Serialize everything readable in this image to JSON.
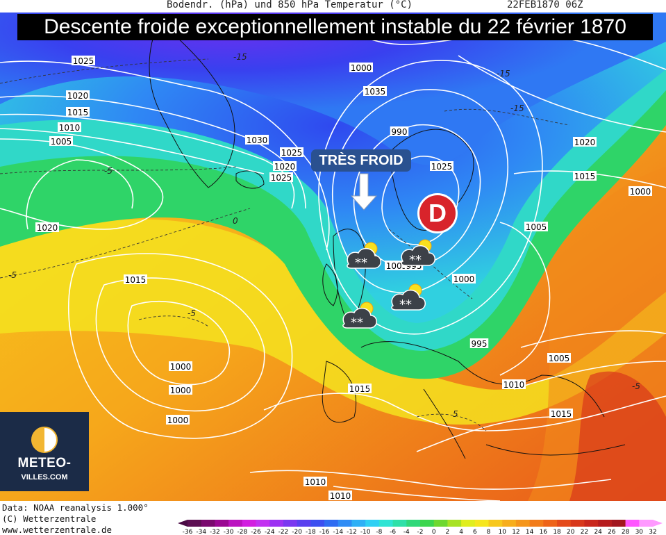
{
  "header": {
    "product": "Bodendr. (hPa) und 850 hPa Temperatur (°C)",
    "timestamp": "22FEB1870 06Z"
  },
  "title": "Descente froide exceptionnellement instable du 22 février 1870",
  "callout": "TRÈS FROID",
  "depression_marker": "D",
  "logo": {
    "line1": "METEO-",
    "line2": "VILLES.COM"
  },
  "footer": {
    "line1": "Data: NOAA reanalysis 1.000°",
    "line2": "(C) Wetterzentrale",
    "line3": "www.wetterzentrale.de"
  },
  "isobar_labels": [
    "1025",
    "1020",
    "1015",
    "1010",
    "1005",
    "1000",
    "1035",
    "1030",
    "1025",
    "1020",
    "1025",
    "1020",
    "1015",
    "1000",
    "990",
    "1025",
    "1020",
    "1015",
    "1005",
    "1000",
    "995",
    "1000",
    "1000",
    "1000",
    "995",
    "1005",
    "1015",
    "1010",
    "1015",
    "1010",
    "1010",
    "1005"
  ],
  "isotherm_labels": [
    "-15",
    "-15",
    "-5",
    "0",
    "-5",
    "-5",
    "-15",
    "5",
    "-5"
  ],
  "color_scale": {
    "ticks": [
      "-36",
      "-34",
      "-32",
      "-30",
      "-28",
      "-26",
      "-24",
      "-22",
      "-20",
      "-18",
      "-16",
      "-14",
      "-12",
      "-10",
      "-8",
      "-6",
      "-4",
      "-2",
      "0",
      "2",
      "4",
      "6",
      "8",
      "10",
      "12",
      "14",
      "16",
      "18",
      "20",
      "22",
      "24",
      "26",
      "28",
      "30",
      "32"
    ],
    "colors": [
      "#5c0f52",
      "#7a0a6e",
      "#9a0892",
      "#bb14c0",
      "#d21fe0",
      "#c232f0",
      "#9c32f2",
      "#7a38f0",
      "#5a40ef",
      "#3c4ff0",
      "#2f6cf2",
      "#2f8cf5",
      "#2fb0f6",
      "#2fd0f4",
      "#30e4d4",
      "#2fe0a8",
      "#2fd87a",
      "#3cd64e",
      "#6ed830",
      "#a8e224",
      "#e0ee1e",
      "#f6e61e",
      "#f7c81d",
      "#f7ae1c",
      "#f5961b",
      "#f27c1a",
      "#ee6419",
      "#e44a1a",
      "#d8381b",
      "#c9271c",
      "#b61c1e",
      "#a2161f",
      "#ff55ff",
      "#ff99ff"
    ]
  },
  "colors": {
    "banner_bg": "#000000",
    "callout_bg": "#2a5190",
    "depression_red": "#d8242b",
    "logo_bg": "#1b2b47"
  }
}
